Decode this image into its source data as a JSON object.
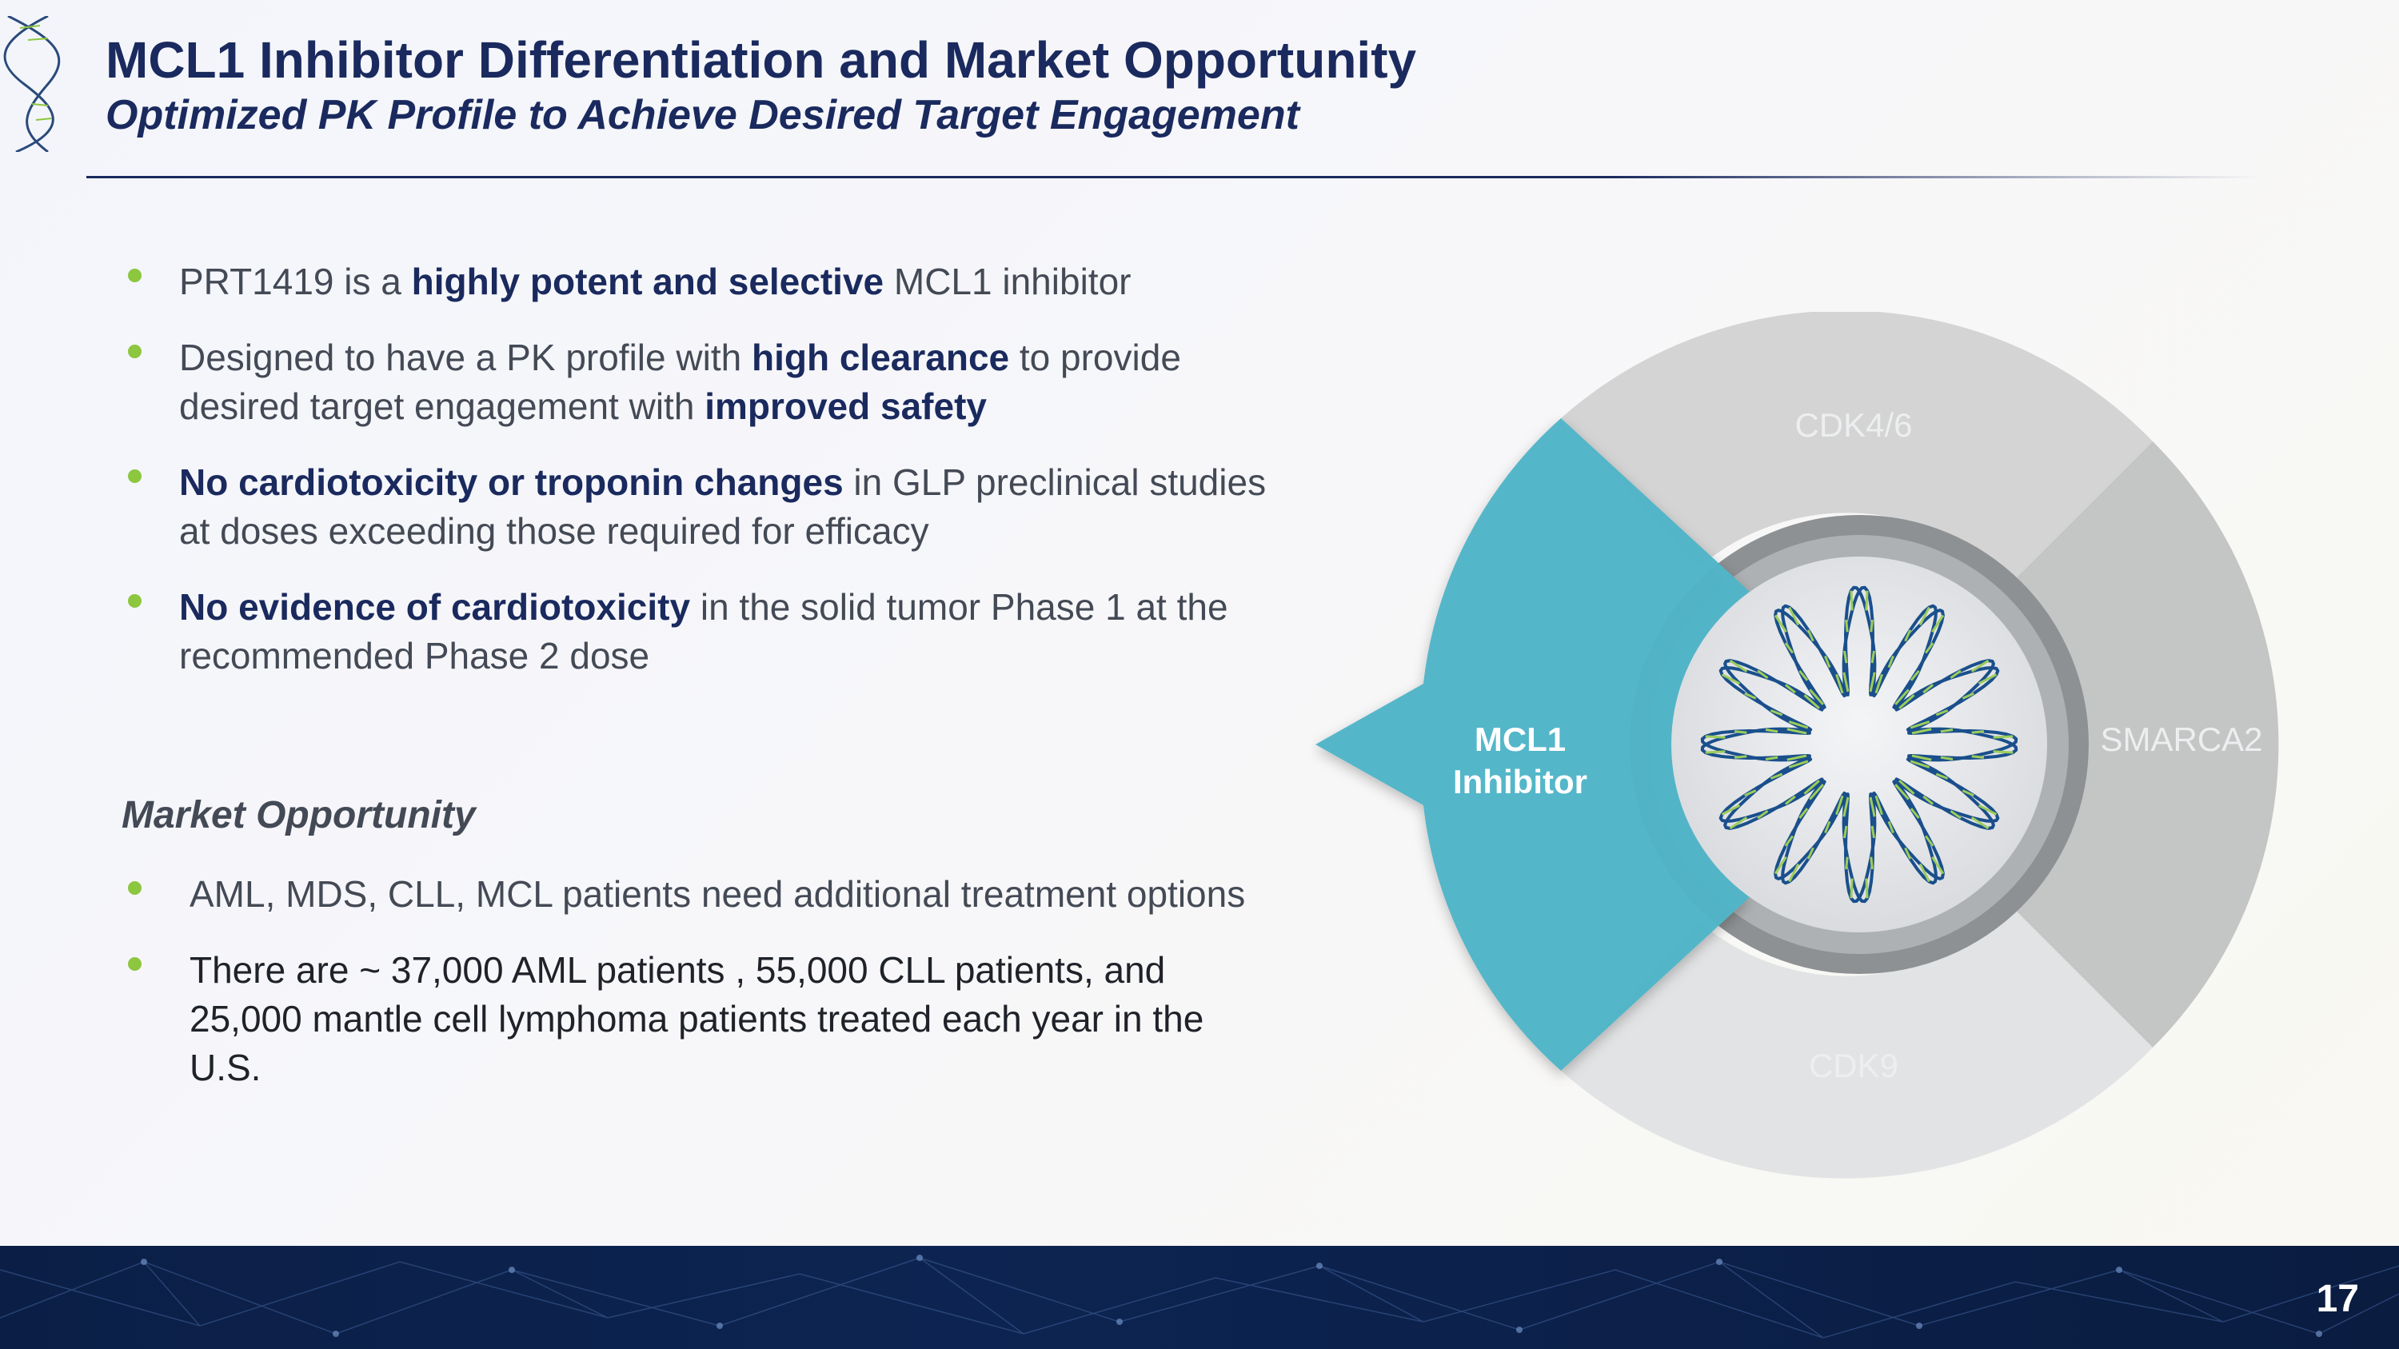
{
  "title": "MCL1 Inhibitor Differentiation and Market Opportunity",
  "subtitle": "Optimized PK Profile to Achieve Desired Target Engagement",
  "bullets": [
    {
      "t1": "PRT1419 is a ",
      "b1": "highly potent and selective",
      "t2": " MCL1 inhibitor"
    },
    {
      "t1": "Designed to have a PK profile with ",
      "b1": "high clearance",
      "t2": " to provide desired target engagement with ",
      "b2": "improved safety"
    },
    {
      "b1": "No cardiotoxicity or troponin changes",
      "t1": " in GLP preclinical studies at doses exceeding those required for efficacy"
    },
    {
      "b1": "No evidence of cardiotoxicity",
      "t1": " in the solid tumor Phase 1 at the recommended Phase 2 dose"
    }
  ],
  "market": {
    "heading": "Market Opportunity",
    "bullets": [
      "AML, MDS, CLL, MCL patients need additional treatment options",
      "There are ~ 37,000 AML patients , 55,000 CLL patients, and 25,000 mantle cell lymphoma patients treated each year  in the U.S."
    ]
  },
  "diagram": {
    "segments": [
      "CDK4/6",
      "SMARCA2",
      "CDK9"
    ],
    "highlight_line1": "MCL1",
    "highlight_line2": "Inhibitor",
    "colors": {
      "highlight": "#4fb5c8",
      "segment_top": "#d3d4d3",
      "segment_right": "#c4c6c5",
      "segment_bottom": "#e2e3e4",
      "inner_ring": "#8e9193",
      "dna_outline": "#1a4f8c",
      "dna_rungs": "#9ccc5b"
    }
  },
  "page_number": "17",
  "colors": {
    "title": "#1a2a5e",
    "bullet_dot": "#8dc63f",
    "footer": "#0b1f46"
  }
}
